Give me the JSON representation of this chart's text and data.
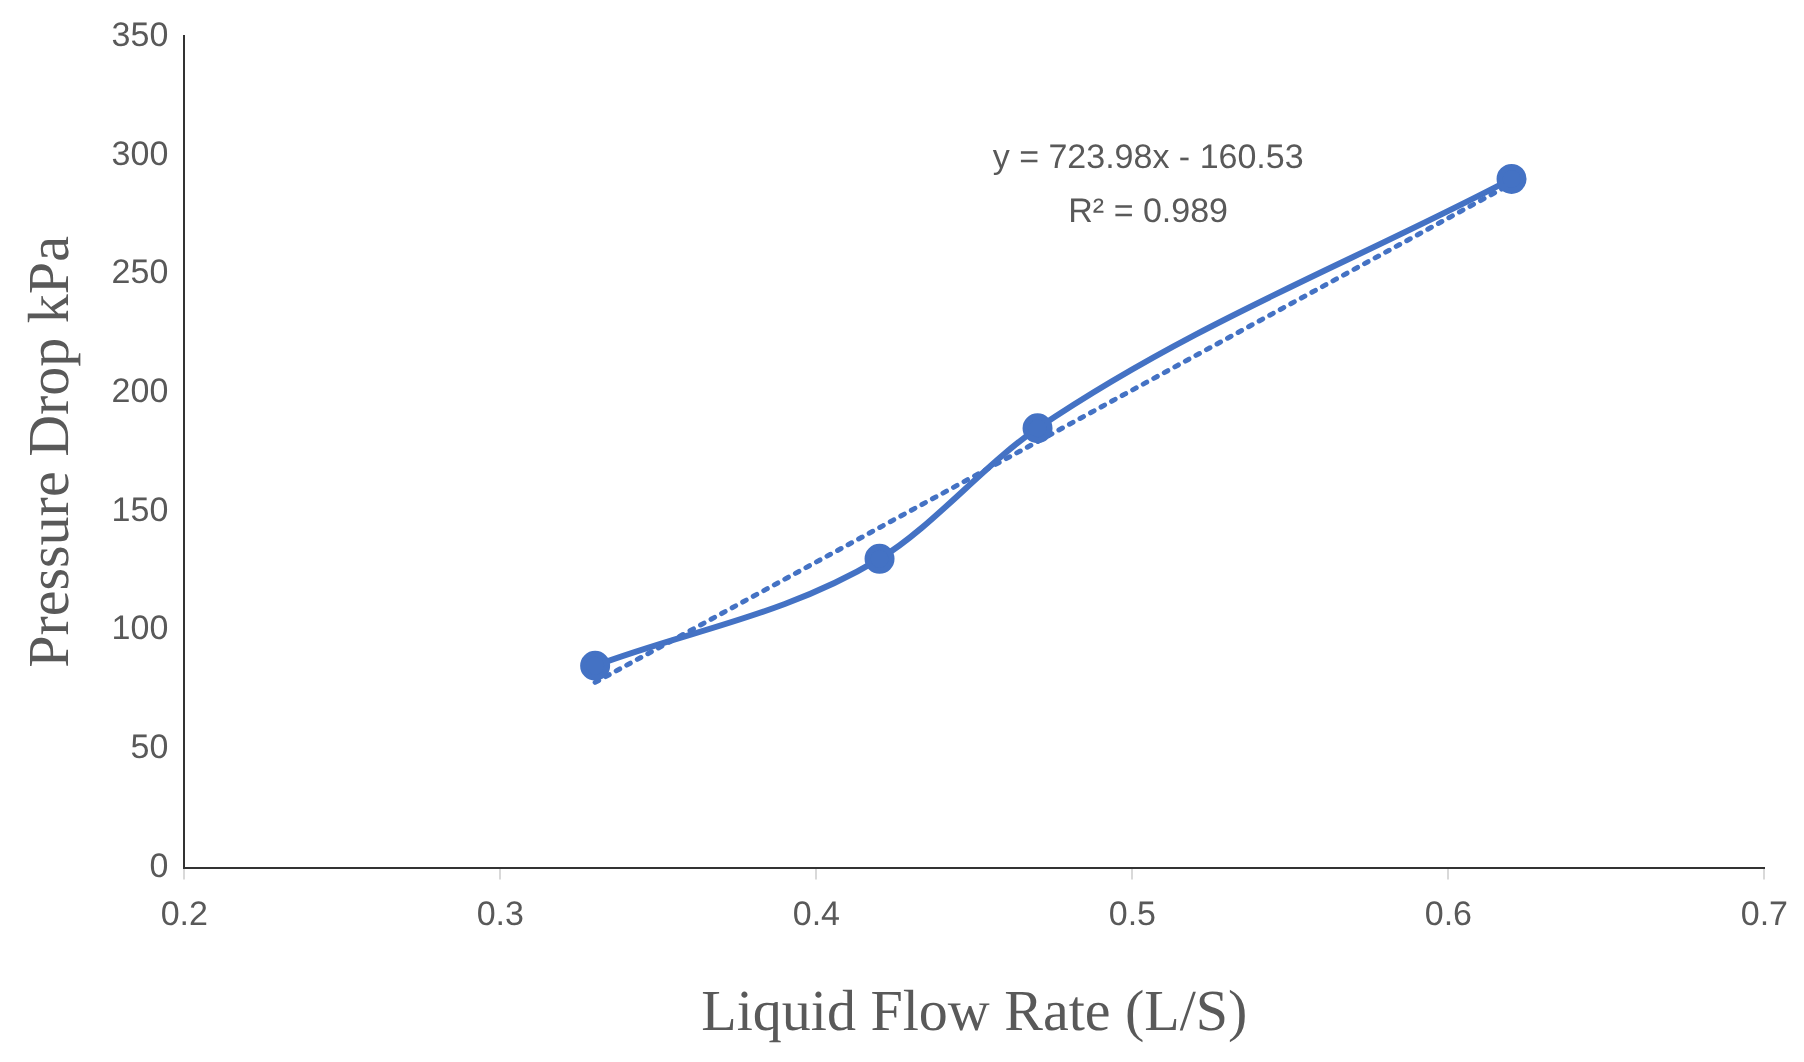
{
  "chart_data": {
    "type": "line",
    "xlabel": "Liquid Flow Rate (L/S)",
    "ylabel": "Pressure Drop kPa",
    "x": [
      0.33,
      0.42,
      0.47,
      0.62
    ],
    "series": [
      {
        "color": "#4472c4",
        "values": [
          85,
          130,
          185,
          290
        ],
        "marker": "circle",
        "line_style": "solid"
      },
      {
        "type": "line",
        "color": "#4472c4",
        "x": [
          0.33,
          0.62
        ],
        "values": [
          78,
          288
        ],
        "marker": "none",
        "line_style": "dotted"
      }
    ],
    "xlim": [
      0.2,
      0.7
    ],
    "xticks": [
      0.2,
      0.3,
      0.4,
      0.5,
      0.6,
      0.7
    ],
    "ylim": [
      0,
      350
    ],
    "yticks": [
      0,
      50,
      100,
      150,
      200,
      250,
      300,
      350
    ],
    "grid": false,
    "legend": false,
    "annotations": [
      "y = 723.98x - 160.53",
      "R² = 0.989"
    ]
  }
}
